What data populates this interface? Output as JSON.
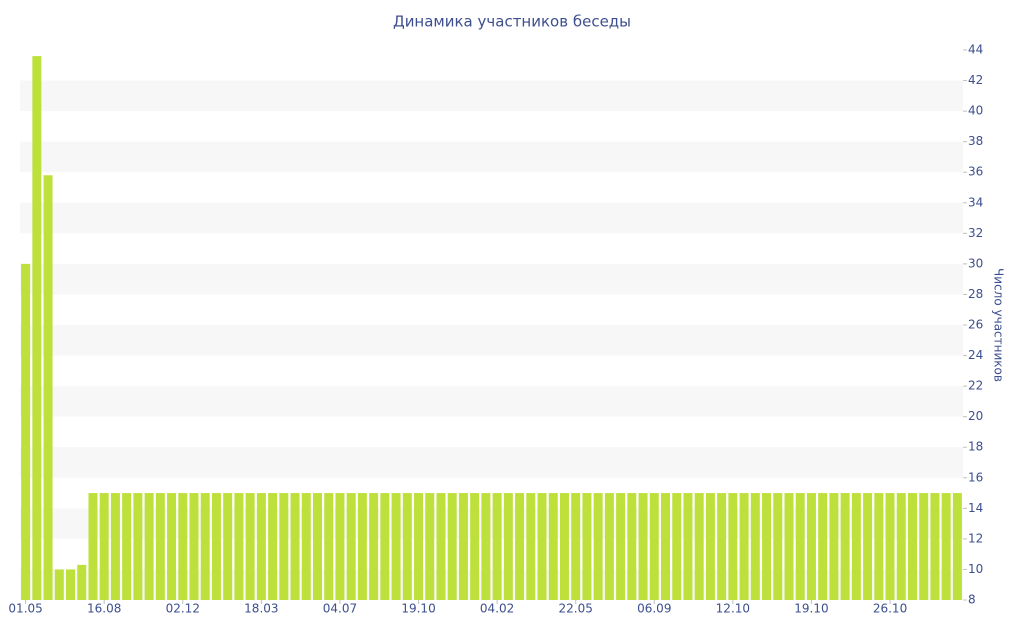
{
  "chart_data": {
    "type": "bar",
    "title": "Динамика участников беседы",
    "y_label": "Число участников",
    "categories": [
      "01.05",
      null,
      null,
      null,
      null,
      null,
      null,
      "16.08",
      null,
      null,
      null,
      null,
      null,
      null,
      "02.12",
      null,
      null,
      null,
      null,
      null,
      null,
      "18.03",
      null,
      null,
      null,
      null,
      null,
      null,
      "04.07",
      null,
      null,
      null,
      null,
      null,
      null,
      "19.10",
      null,
      null,
      null,
      null,
      null,
      null,
      "04.02",
      null,
      null,
      null,
      null,
      null,
      null,
      "22.05",
      null,
      null,
      null,
      null,
      null,
      null,
      "06.09",
      null,
      null,
      null,
      null,
      null,
      null,
      "12.10",
      null,
      null,
      null,
      null,
      null,
      null,
      "19.10",
      null,
      null,
      null,
      null,
      null,
      null,
      "26.10",
      null,
      null,
      null,
      null,
      null,
      null
    ],
    "values": [
      30,
      43.6,
      35.8,
      10,
      10,
      10.3,
      15,
      15,
      15,
      15,
      15,
      15,
      15,
      15,
      15,
      15,
      15,
      15,
      15,
      15,
      15,
      15,
      15,
      15,
      15,
      15,
      15,
      15,
      15,
      15,
      15,
      15,
      15,
      15,
      15,
      15,
      15,
      15,
      15,
      15,
      15,
      15,
      15,
      15,
      15,
      15,
      15,
      15,
      15,
      15,
      15,
      15,
      15,
      15,
      15,
      15,
      15,
      15,
      15,
      15,
      15,
      15,
      15,
      15,
      15,
      15,
      15,
      15,
      15,
      15,
      15,
      15,
      15,
      15,
      15,
      15,
      15,
      15,
      15,
      15,
      15,
      15,
      15,
      15
    ],
    "color": "#bde03a",
    "ylim": [
      8,
      44
    ],
    "yticks": [
      8,
      10,
      12,
      14,
      16,
      18,
      20,
      22,
      24,
      26,
      28,
      30,
      32,
      34,
      36,
      38,
      40,
      42,
      44
    ],
    "grid": true,
    "y_axis_side": "right"
  }
}
